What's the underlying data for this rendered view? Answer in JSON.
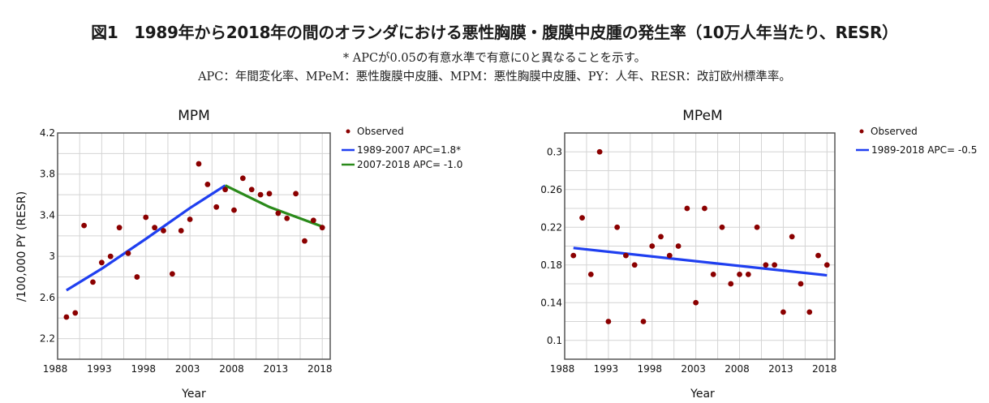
{
  "header": {
    "title": "図1　1989年から2018年の間のオランダにおける悪性胸膜・腹膜中皮腫の発生率（10万人年当たり、RESR）",
    "note1": "* APCが0.05の有意水準で有意に0と異なることを示す。",
    "note2": "APC：年間変化率、MPeM：悪性腹膜中皮腫、MPM：悪性胸膜中皮腫、PY：人年、RESR：改訂欧州標準率。"
  },
  "colors": {
    "observed": "#8b0000",
    "trend_blue": "#1f3ff0",
    "trend_green": "#2a8a1a",
    "grid": "#d4d4d4",
    "frame": "#555555"
  },
  "chart_data": [
    {
      "type": "scatter",
      "title": "MPM",
      "xlabel": "Year",
      "ylabel": "/100,000 PY (RESR)",
      "xlim": [
        1988,
        2018.9
      ],
      "ylim": [
        2.0,
        4.2
      ],
      "xticks": [
        "1988",
        "1993",
        "1998",
        "2003",
        "2008",
        "2013",
        "2018"
      ],
      "yticks": [
        "2.2",
        "2.6",
        "3",
        "3.4",
        "3.8",
        "4.2"
      ],
      "grid": true,
      "legend_position": "right",
      "legend": [
        "Observed",
        "1989-2007 APC=1.8*",
        "2007-2018 APC= -1.0"
      ],
      "observed": {
        "name": "Observed",
        "x": [
          1989,
          1990,
          1991,
          1992,
          1993,
          1994,
          1995,
          1996,
          1997,
          1998,
          1999,
          2000,
          2001,
          2002,
          2003,
          2004,
          2005,
          2006,
          2007,
          2008,
          2009,
          2010,
          2011,
          2012,
          2013,
          2014,
          2015,
          2016,
          2017,
          2018
        ],
        "y": [
          2.41,
          2.45,
          3.3,
          2.75,
          2.94,
          3.0,
          3.28,
          3.03,
          2.8,
          3.38,
          3.28,
          3.25,
          2.83,
          3.25,
          3.36,
          3.9,
          3.7,
          3.48,
          3.65,
          3.45,
          3.76,
          3.65,
          3.6,
          3.61,
          3.42,
          3.37,
          3.61,
          3.15,
          3.35,
          3.28
        ]
      },
      "series": [
        {
          "name": "1989-2007 APC=1.8*",
          "color": "#1f3ff0",
          "x": [
            1989,
            1993,
            1998,
            2003,
            2007
          ],
          "y": [
            2.67,
            2.88,
            3.17,
            3.47,
            3.69
          ]
        },
        {
          "name": "2007-2018 APC= -1.0",
          "color": "#2a8a1a",
          "x": [
            2007,
            2012,
            2018
          ],
          "y": [
            3.69,
            3.48,
            3.29
          ]
        }
      ]
    },
    {
      "type": "scatter",
      "title": "MPeM",
      "xlabel": "Year",
      "ylabel": "",
      "xlim": [
        1988,
        2018.9
      ],
      "ylim": [
        0.08,
        0.32
      ],
      "xticks": [
        "1988",
        "1993",
        "1998",
        "2003",
        "2008",
        "2013",
        "2018"
      ],
      "yticks": [
        "0.1",
        "0.14",
        "0.18",
        "0.22",
        "0.26",
        "0.3"
      ],
      "grid": true,
      "legend_position": "right",
      "legend": [
        "Observed",
        "1989-2018 APC= -0.5"
      ],
      "observed": {
        "name": "Observed",
        "x": [
          1989,
          1990,
          1991,
          1992,
          1993,
          1994,
          1995,
          1996,
          1997,
          1998,
          1999,
          2000,
          2001,
          2002,
          2003,
          2004,
          2005,
          2006,
          2007,
          2008,
          2009,
          2010,
          2011,
          2012,
          2013,
          2014,
          2015,
          2016,
          2017,
          2018
        ],
        "y": [
          0.19,
          0.23,
          0.17,
          0.3,
          0.12,
          0.22,
          0.19,
          0.18,
          0.12,
          0.2,
          0.21,
          0.19,
          0.2,
          0.24,
          0.14,
          0.24,
          0.17,
          0.22,
          0.16,
          0.17,
          0.17,
          0.22,
          0.18,
          0.18,
          0.13,
          0.21,
          0.16,
          0.13,
          0.19,
          0.18
        ]
      },
      "series": [
        {
          "name": "1989-2018 APC= -0.5",
          "color": "#1f3ff0",
          "x": [
            1989,
            2018
          ],
          "y": [
            0.198,
            0.169
          ]
        }
      ]
    }
  ]
}
